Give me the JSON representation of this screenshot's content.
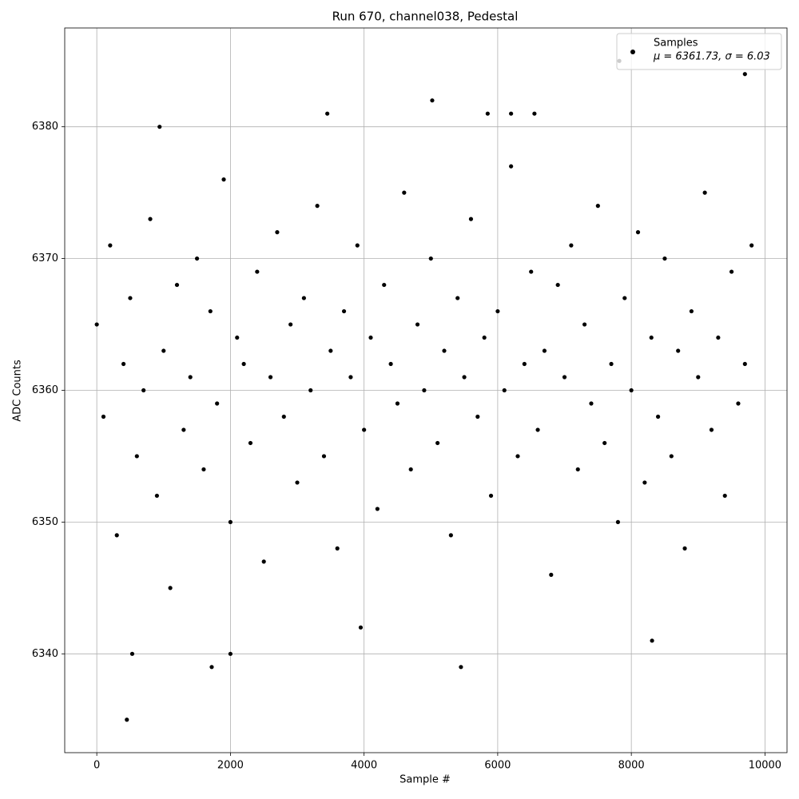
{
  "chart_data": {
    "type": "scatter",
    "title": "Run 670, channel038, Pedestal",
    "xlabel": "Sample #",
    "ylabel": "ADC Counts",
    "xlim": [
      -480,
      10330
    ],
    "ylim": [
      6332.5,
      6387.5
    ],
    "xticks": [
      0,
      2000,
      4000,
      6000,
      8000,
      10000
    ],
    "yticks": [
      6340,
      6350,
      6360,
      6370,
      6380
    ],
    "grid": true,
    "legend_position": "upper right",
    "legend_note": "μ = 6361.73, σ = 6.03",
    "series": [
      {
        "name": "Samples",
        "color": "#000000",
        "x": [
          0,
          100,
          200,
          300,
          400,
          500,
          600,
          700,
          800,
          900,
          1000,
          1100,
          1200,
          1300,
          1400,
          1500,
          1600,
          1700,
          1800,
          1900,
          2000,
          2100,
          2200,
          2300,
          2400,
          2500,
          2600,
          2700,
          2800,
          2900,
          3000,
          3100,
          3200,
          3300,
          3400,
          3500,
          3600,
          3700,
          3800,
          3900,
          4000,
          4100,
          4200,
          4300,
          4400,
          4500,
          4600,
          4700,
          4800,
          4900,
          5000,
          5100,
          5200,
          5300,
          5400,
          5500,
          5600,
          5700,
          5800,
          5900,
          6000,
          6100,
          6200,
          6300,
          6400,
          6500,
          6600,
          6700,
          6800,
          6900,
          7000,
          7100,
          7200,
          7300,
          7400,
          7500,
          7600,
          7700,
          7800,
          7900,
          8000,
          8100,
          8200,
          8300,
          8400,
          8500,
          8600,
          8700,
          8800,
          8900,
          9000,
          9100,
          9200,
          9300,
          9400,
          9500,
          9600,
          9700,
          9800,
          450,
          530,
          1720,
          2000,
          3950,
          5450,
          8310,
          5020,
          9700,
          7820,
          940,
          3450,
          5850,
          6200,
          6550
        ],
        "values": [
          6365,
          6358,
          6371,
          6349,
          6362,
          6367,
          6355,
          6360,
          6373,
          6352,
          6363,
          6345,
          6368,
          6357,
          6361,
          6370,
          6354,
          6366,
          6359,
          6376,
          6350,
          6364,
          6362,
          6356,
          6369,
          6347,
          6361,
          6372,
          6358,
          6365,
          6353,
          6367,
          6360,
          6374,
          6355,
          6363,
          6348,
          6366,
          6361,
          6371,
          6357,
          6364,
          6351,
          6368,
          6362,
          6359,
          6375,
          6354,
          6365,
          6360,
          6370,
          6356,
          6363,
          6349,
          6367,
          6361,
          6373,
          6358,
          6364,
          6352,
          6366,
          6360,
          6377,
          6355,
          6362,
          6369,
          6357,
          6363,
          6346,
          6368,
          6361,
          6371,
          6354,
          6365,
          6359,
          6374,
          6356,
          6362,
          6350,
          6367,
          6360,
          6372,
          6353,
          6364,
          6358,
          6370,
          6355,
          6363,
          6348,
          6366,
          6361,
          6375,
          6357,
          6364,
          6352,
          6369,
          6359,
          6362,
          6371,
          6335,
          6340,
          6339,
          6340,
          6342,
          6339,
          6341,
          6382,
          6384,
          6385,
          6380,
          6381,
          6381,
          6381,
          6381
        ]
      }
    ]
  }
}
